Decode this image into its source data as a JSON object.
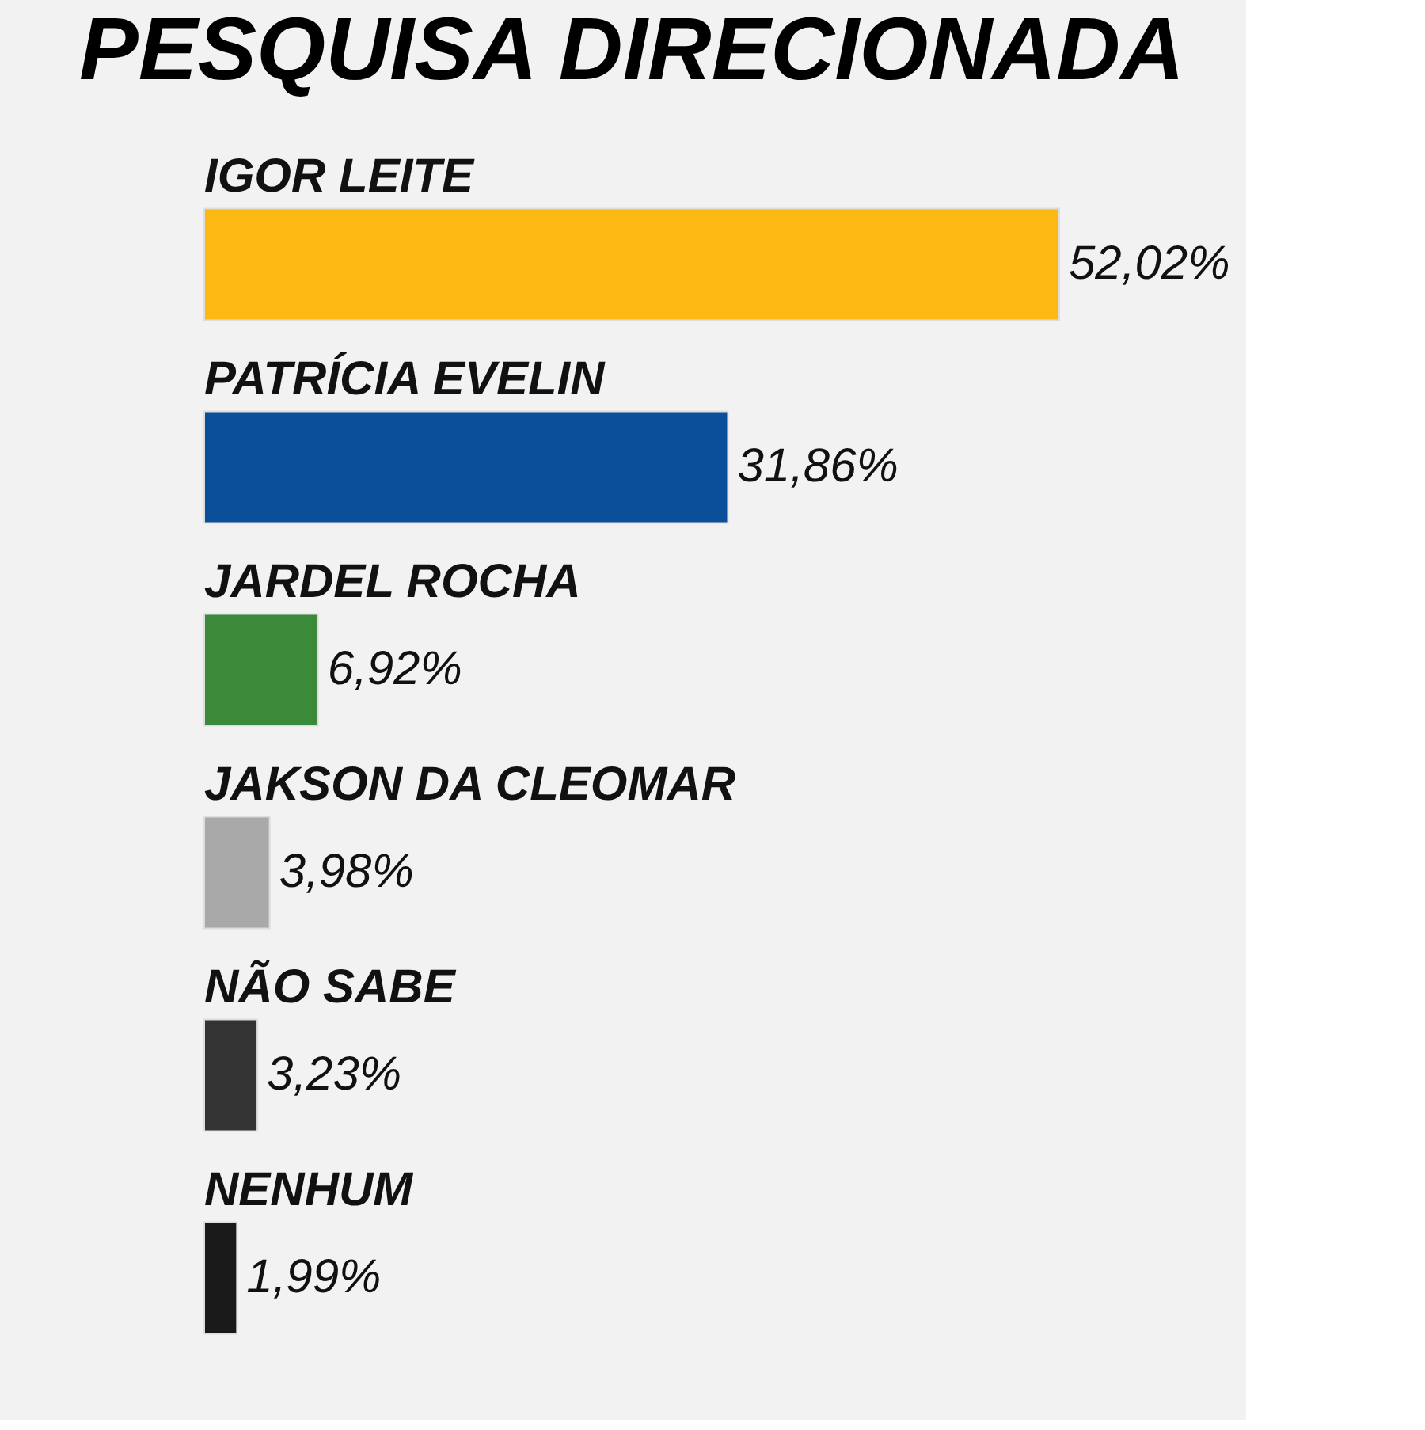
{
  "chart_data": {
    "type": "bar",
    "orientation": "horizontal",
    "title": "PESQUISA DIRECIONADA",
    "categories": [
      "IGOR LEITE",
      "PATRÍCIA EVELIN",
      "JARDEL ROCHA",
      "JAKSON DA CLEOMAR",
      "NÃO SABE",
      "NENHUM"
    ],
    "values": [
      52.02,
      31.86,
      6.92,
      3.98,
      3.23,
      1.99
    ],
    "colors": [
      "#fdb913",
      "#0b4f9a",
      "#3a8a3a",
      "#a9a9a9",
      "#333333",
      "#1a1a1a"
    ],
    "value_labels": [
      "52,02%",
      "31,86%",
      "6,92%",
      "3,98%",
      "3,23%",
      "1,99%"
    ],
    "grid": false
  }
}
